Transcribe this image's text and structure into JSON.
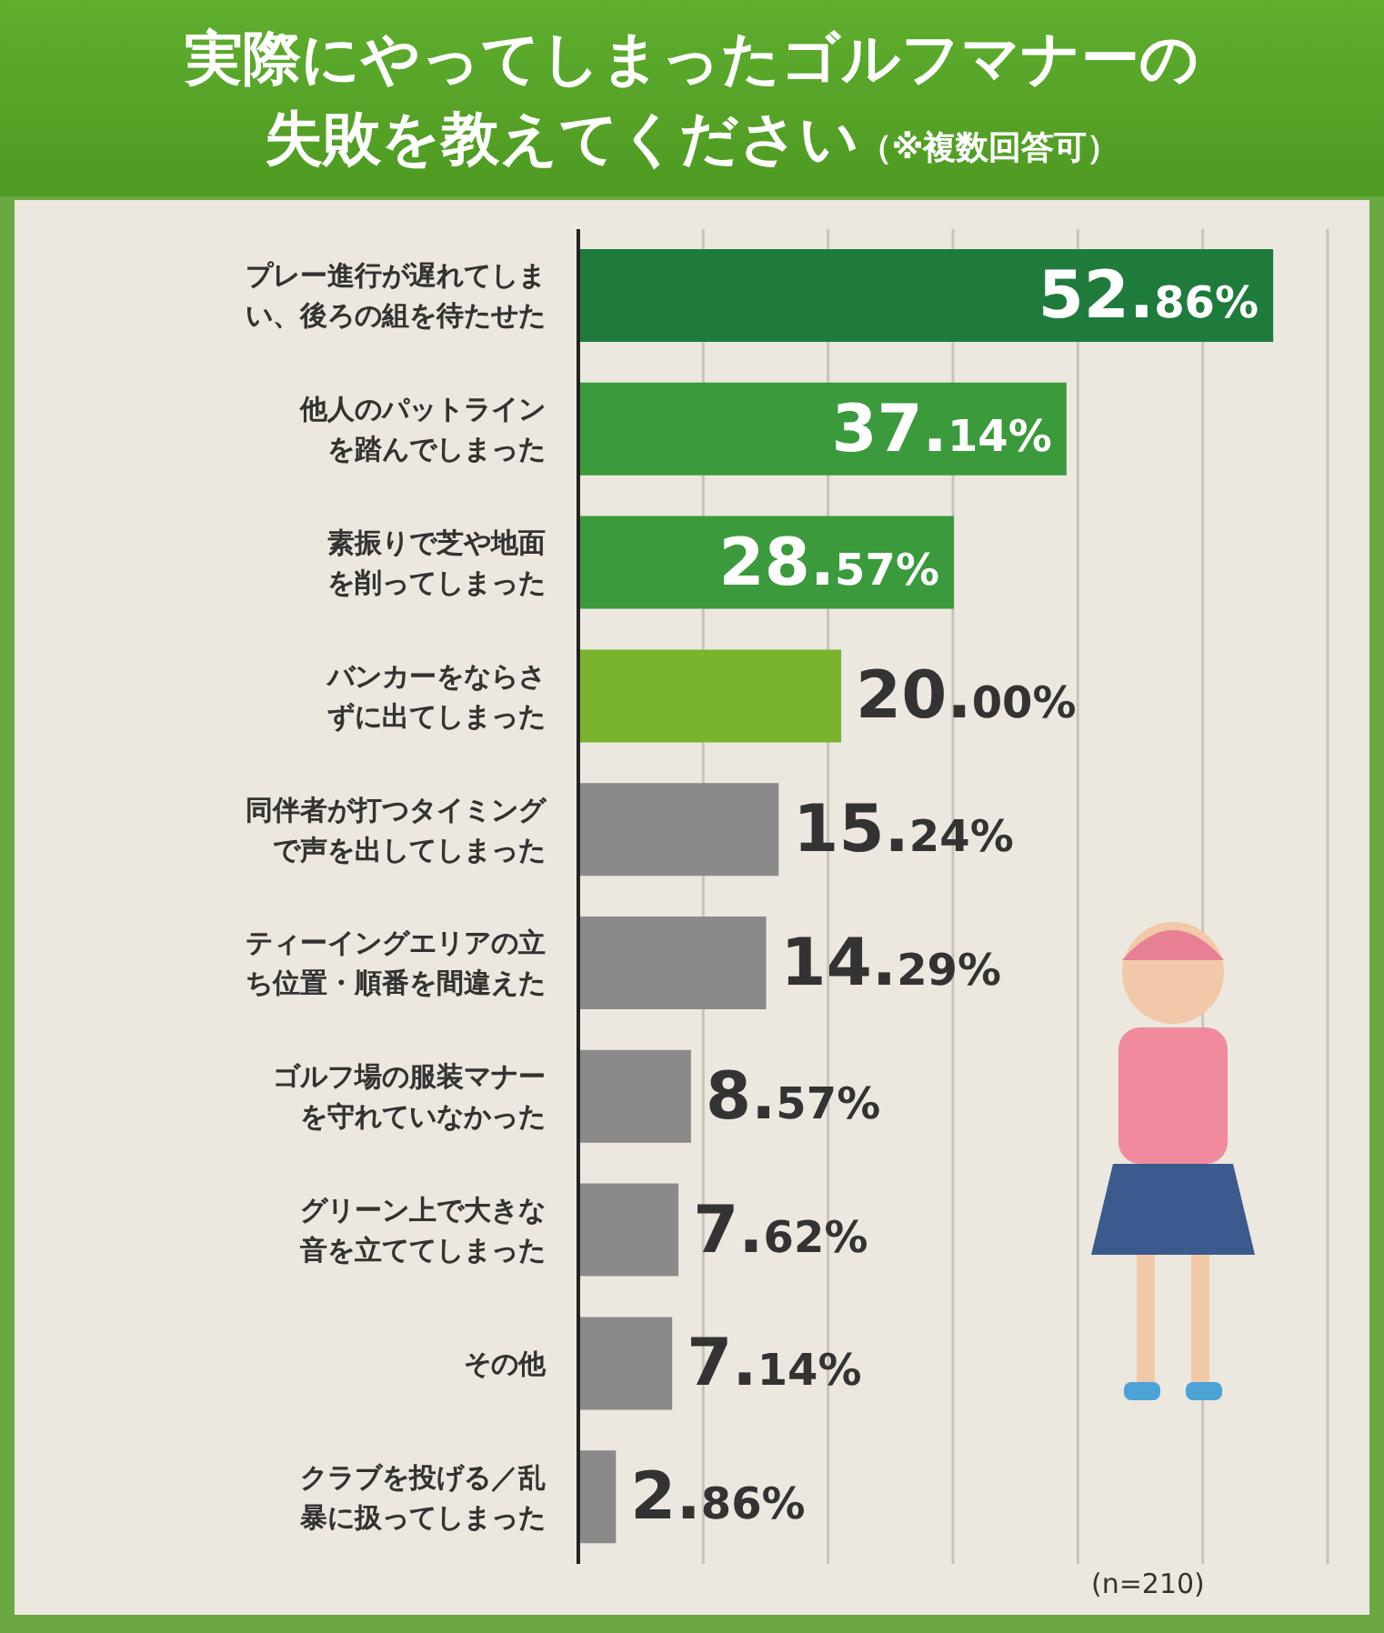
{
  "chart_data": {
    "type": "bar",
    "orientation": "horizontal",
    "title": "実際にやってしまったゴルフマナーの失敗を教えてください",
    "subtitle": "（※複数回答可）",
    "categories": [
      "プレー進行が遅れてしまい、後ろの組を待たせた",
      "他人のパットラインを踏んでしまった",
      "素振りで芝や地面を削ってしまった",
      "バンカーをならさずに出てしまった",
      "同伴者が打つタイミングで声を出してしまった",
      "ティーイングエリアの立ち位置・順番を間違えた",
      "ゴルフ場の服装マナーを守れていなかった",
      "グリーン上で大きな音を立ててしまった",
      "その他",
      "クラブを投げる／乱暴に扱ってしまった"
    ],
    "values": [
      52.86,
      37.14,
      28.57,
      20.0,
      15.24,
      14.29,
      8.57,
      7.62,
      7.14,
      2.86
    ],
    "value_labels": [
      "52.86%",
      "37.14%",
      "28.57%",
      "20.00%",
      "15.24%",
      "14.29%",
      "8.57%",
      "7.62%",
      "7.14%",
      "2.86%"
    ],
    "colors": [
      "#1e7b3c",
      "#3a9a3c",
      "#3a9a3c",
      "#7ab32e",
      "#8a8a8a",
      "#8a8a8a",
      "#8a8a8a",
      "#8a8a8a",
      "#8a8a8a",
      "#8a8a8a"
    ],
    "xlim": [
      0,
      57
    ],
    "xticks": [
      {
        "value": 0,
        "label": null
      },
      {
        "value": 9.5,
        "label": null
      },
      {
        "value": 19,
        "label": null
      },
      {
        "value": 28.5,
        "label": null
      },
      {
        "value": 38,
        "label": null
      },
      {
        "value": 47.5,
        "label": null
      },
      {
        "value": 57,
        "label": null
      }
    ],
    "grid": "x",
    "tick_labels": "y",
    "annotations": [
      "(n=210)"
    ]
  }
}
